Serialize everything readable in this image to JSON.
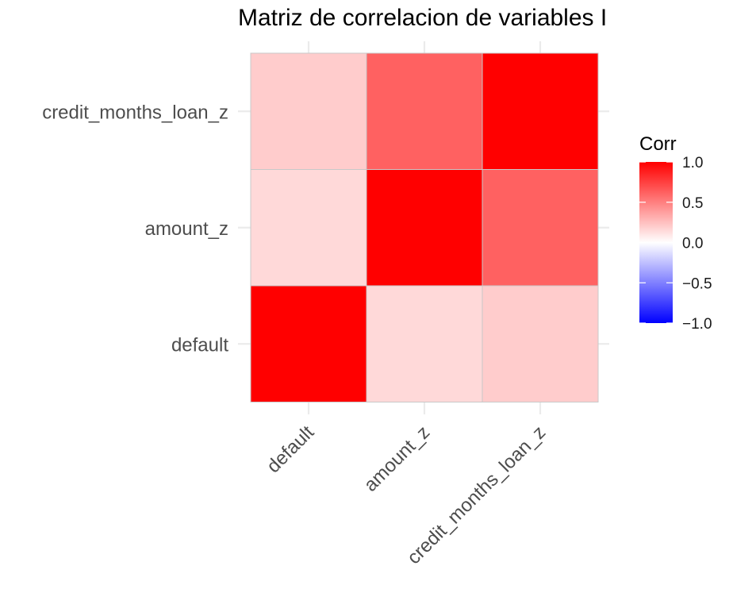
{
  "chart_data": {
    "type": "heatmap",
    "title": "Matriz de correlacion de variables I",
    "xlabel": "",
    "ylabel": "",
    "x_categories": [
      "default",
      "amount_z",
      "credit_months_loan_z"
    ],
    "y_categories": [
      "default",
      "amount_z",
      "credit_months_loan_z"
    ],
    "cells": [
      {
        "x": "default",
        "y": "default",
        "value": 1.0
      },
      {
        "x": "amount_z",
        "y": "default",
        "value": 0.15
      },
      {
        "x": "credit_months_loan_z",
        "y": "default",
        "value": 0.2
      },
      {
        "x": "default",
        "y": "amount_z",
        "value": 0.15
      },
      {
        "x": "amount_z",
        "y": "amount_z",
        "value": 1.0
      },
      {
        "x": "credit_months_loan_z",
        "y": "amount_z",
        "value": 0.62
      },
      {
        "x": "default",
        "y": "credit_months_loan_z",
        "value": 0.2
      },
      {
        "x": "amount_z",
        "y": "credit_months_loan_z",
        "value": 0.62
      },
      {
        "x": "credit_months_loan_z",
        "y": "credit_months_loan_z",
        "value": 1.0
      }
    ],
    "color_scale": {
      "low": "#0000ff",
      "mid": "#ffffff",
      "high": "#ff0000",
      "limits": [
        -1,
        1
      ]
    },
    "legend": {
      "title": "Corr",
      "ticks": [
        1.0,
        0.5,
        0.0,
        -0.5,
        -1.0
      ],
      "tick_labels": [
        "1.0",
        "0.5",
        "0.0",
        "−0.5",
        "−1.0"
      ],
      "position": "right"
    },
    "grid": true
  }
}
